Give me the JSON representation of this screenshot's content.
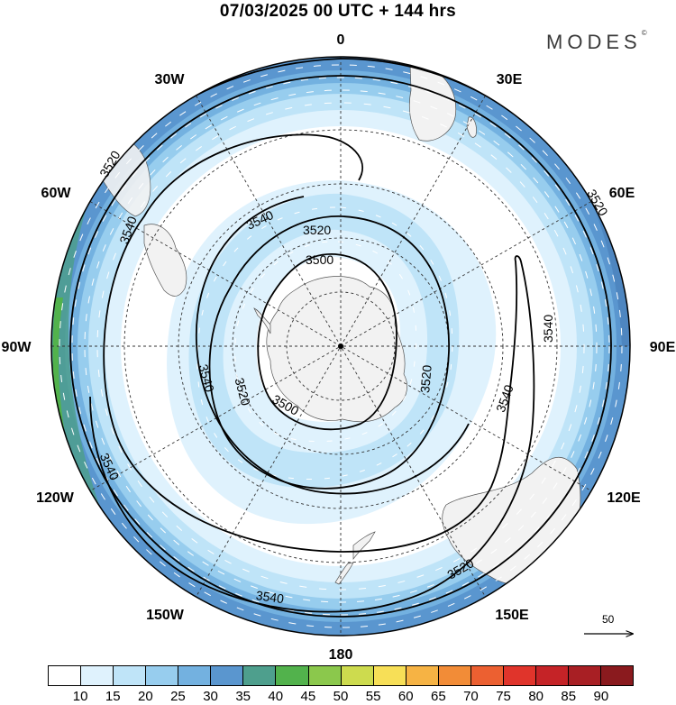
{
  "title": "07/03/2025  00 UTC  + 144 hrs",
  "brand": {
    "text": "MODES",
    "mark": "©"
  },
  "longitude_labels": [
    "0",
    "30E",
    "60E",
    "90E",
    "120E",
    "150E",
    "180",
    "150W",
    "120W",
    "90W",
    "60W",
    "30W"
  ],
  "contour_levels": [
    "3500",
    "3520",
    "3540"
  ],
  "contour_labels_shown": [
    "3520",
    "3540",
    "3520",
    "3500",
    "3540",
    "3520",
    "3500",
    "3540",
    "3520",
    "3540",
    "3520",
    "3540",
    "3540",
    "3540",
    "3520"
  ],
  "wind_speed_colorbar": {
    "labels": [
      "10",
      "15",
      "20",
      "25",
      "30",
      "35",
      "40",
      "45",
      "50",
      "55",
      "60",
      "65",
      "70",
      "75",
      "80",
      "85",
      "90"
    ],
    "colors": [
      "#ffffff",
      "#dff2fd",
      "#bfe4f8",
      "#97cdee",
      "#73b1e0",
      "#5a96cf",
      "#4e9f8d",
      "#52b24c",
      "#8bc84c",
      "#cddb4e",
      "#f7df57",
      "#f6b344",
      "#f28c37",
      "#ec6031",
      "#e0342b",
      "#c52327",
      "#a81f24",
      "#8a1a1e"
    ]
  },
  "reference_vector": {
    "label": "50"
  },
  "colors": {
    "land": "#f2f2f2",
    "coast": "#555555",
    "contour": "#000000",
    "grid": "#333333",
    "wind_arrows": "#ffffff"
  }
}
